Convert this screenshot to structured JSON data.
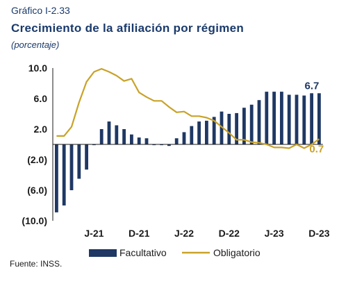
{
  "header": {
    "supertitle": "Gráfico I-2.33",
    "title": "Crecimiento de la afiliación por régimen",
    "units": "(porcentaje)"
  },
  "source": "Fuente: INSS.",
  "colors": {
    "bar": "#1f3864",
    "line": "#c9a227",
    "axis": "#1a1a1a"
  },
  "chart_data": {
    "type": "bar",
    "ylim": [
      -10,
      10
    ],
    "yticks": [
      10,
      6,
      2,
      -2,
      -6,
      -10
    ],
    "ytick_labels": [
      "10.0",
      "6.0",
      "2.0",
      "(2.0)",
      "(6.0)",
      "(10.0)"
    ],
    "xtick_labels": [
      "J-21",
      "D-21",
      "J-22",
      "D-22",
      "J-23",
      "D-23"
    ],
    "xtick_index": [
      5,
      11,
      17,
      23,
      29,
      35
    ],
    "grid": false,
    "legend_position": "bottom",
    "series": [
      {
        "name": "Facultativo",
        "kind": "bar",
        "values": [
          -8.9,
          -8.0,
          -6.0,
          -4.5,
          -3.3,
          -0.1,
          2.0,
          3.0,
          2.5,
          2.0,
          1.3,
          0.9,
          0.8,
          -0.1,
          -0.1,
          -0.2,
          0.8,
          1.6,
          2.4,
          3.0,
          3.1,
          3.6,
          4.3,
          4.0,
          4.1,
          4.8,
          5.2,
          5.8,
          6.9,
          6.9,
          6.9,
          6.5,
          6.5,
          6.4,
          6.7,
          6.7
        ]
      },
      {
        "name": "Obligatorio",
        "kind": "line",
        "values": [
          1.1,
          1.1,
          2.3,
          5.5,
          8.2,
          9.5,
          9.9,
          9.5,
          9.0,
          8.3,
          8.6,
          6.8,
          6.2,
          5.7,
          5.7,
          4.9,
          4.2,
          4.3,
          3.7,
          3.7,
          3.5,
          3.1,
          2.3,
          1.5,
          0.6,
          0.6,
          0.3,
          0.2,
          0.0,
          -0.4,
          -0.4,
          -0.5,
          0.0,
          -0.5,
          0.0,
          0.7
        ]
      }
    ],
    "end_labels": {
      "Facultativo": "6.7",
      "Obligatorio": "0.7"
    }
  }
}
